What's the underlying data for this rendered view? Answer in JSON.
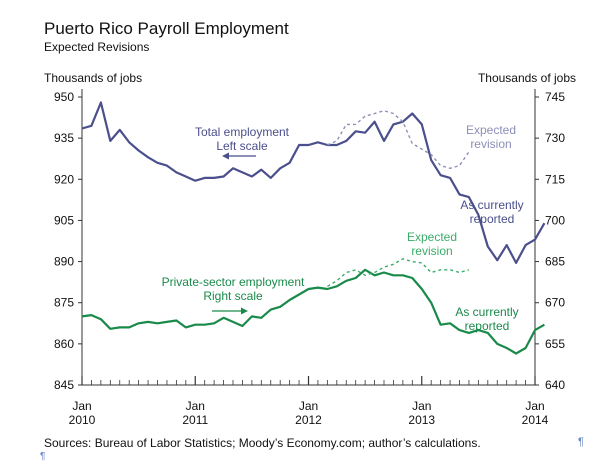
{
  "header": {
    "title": "Puerto Rico Payroll Employment",
    "subtitle": "Expected Revisions",
    "ylabel_left": "Thousands of jobs",
    "ylabel_right": "Thousands of jobs"
  },
  "footer": {
    "source": "Sources: Bureau of Labor Statistics; Moody’s Economy.com; author’s calculations.",
    "pilcrow": "¶"
  },
  "colors": {
    "total": "#4b4f8c",
    "total_expected": "#8c8fb8",
    "private": "#1a8a4a",
    "private_expected": "#3cac6a",
    "axis": "#333333"
  },
  "chart_data": {
    "type": "line",
    "x_range": [
      "2010-01",
      "2014-01"
    ],
    "ylim_left": [
      845,
      950
    ],
    "ylim_right": [
      640,
      745
    ],
    "yticks_left": [
      845,
      860,
      875,
      890,
      905,
      920,
      935,
      950
    ],
    "yticks_right": [
      640,
      655,
      670,
      685,
      700,
      715,
      730,
      745
    ],
    "xticks": [
      {
        "date": "2010-01",
        "label": [
          "Jan",
          "2010"
        ]
      },
      {
        "date": "2011-01",
        "label": [
          "Jan",
          "2011"
        ]
      },
      {
        "date": "2012-01",
        "label": [
          "Jan",
          "2012"
        ]
      },
      {
        "date": "2013-01",
        "label": [
          "Jan",
          "2013"
        ]
      },
      {
        "date": "2014-01",
        "label": [
          "Jan",
          "2014"
        ]
      }
    ],
    "series": [
      {
        "key": "total",
        "axis": "left",
        "style": "solid",
        "start": "2010-01",
        "values": [
          938.5,
          939.5,
          948,
          934,
          938,
          933.5,
          930.5,
          928,
          926,
          925,
          922.5,
          921,
          919.5,
          920.5,
          920.5,
          921,
          924,
          922.5,
          921,
          923.5,
          920.5,
          924,
          926,
          932.5,
          932.5,
          933.5,
          932.5,
          932.5,
          934,
          937.5,
          937,
          941,
          934,
          940,
          941,
          944,
          940,
          927,
          921.5,
          920.5,
          914.5,
          913.5,
          907,
          895.5,
          890.5,
          896,
          889.5,
          896,
          898,
          904
        ]
      },
      {
        "key": "total_expected",
        "axis": "left",
        "style": "dashed",
        "start": "2012-03",
        "values": [
          932.5,
          934,
          940,
          940,
          943,
          944,
          945,
          944,
          941,
          933,
          931,
          929,
          925,
          924,
          925,
          930
        ]
      },
      {
        "key": "private",
        "axis": "right",
        "style": "solid",
        "start": "2010-01",
        "values": [
          665,
          665.5,
          664,
          660.5,
          661,
          661,
          662.5,
          663,
          662.5,
          663,
          663.5,
          661,
          662,
          662,
          662.5,
          664.5,
          663,
          661.5,
          665,
          664.5,
          667.5,
          668.5,
          671,
          673,
          675,
          675.5,
          675,
          676,
          678,
          679,
          682,
          680,
          681,
          680,
          680,
          679,
          675,
          670,
          662,
          662.5,
          660,
          659,
          660,
          659,
          655,
          653.5,
          651.5,
          653.5,
          660,
          662
        ]
      },
      {
        "key": "private_expected",
        "axis": "right",
        "style": "dashed",
        "start": "2012-03",
        "values": [
          676,
          678,
          681,
          682,
          680,
          681,
          683,
          684,
          686,
          685,
          684.5,
          681,
          682,
          682,
          681,
          682
        ]
      }
    ],
    "annotations": [
      {
        "key": "total_label",
        "lines": [
          "Total employment",
          "Left scale"
        ],
        "series": "total"
      },
      {
        "key": "total_expected_label",
        "lines": [
          "Expected",
          "revision"
        ],
        "series": "total_expected"
      },
      {
        "key": "total_current_label",
        "lines": [
          "As currently",
          "reported"
        ],
        "series": "total"
      },
      {
        "key": "private_label",
        "lines": [
          "Private-sector employment",
          "Right scale"
        ],
        "series": "private"
      },
      {
        "key": "private_expected_label",
        "lines": [
          "Expected",
          "revision"
        ],
        "series": "private_expected"
      },
      {
        "key": "private_current_label",
        "lines": [
          "As currently",
          "reported"
        ],
        "series": "private"
      }
    ]
  }
}
